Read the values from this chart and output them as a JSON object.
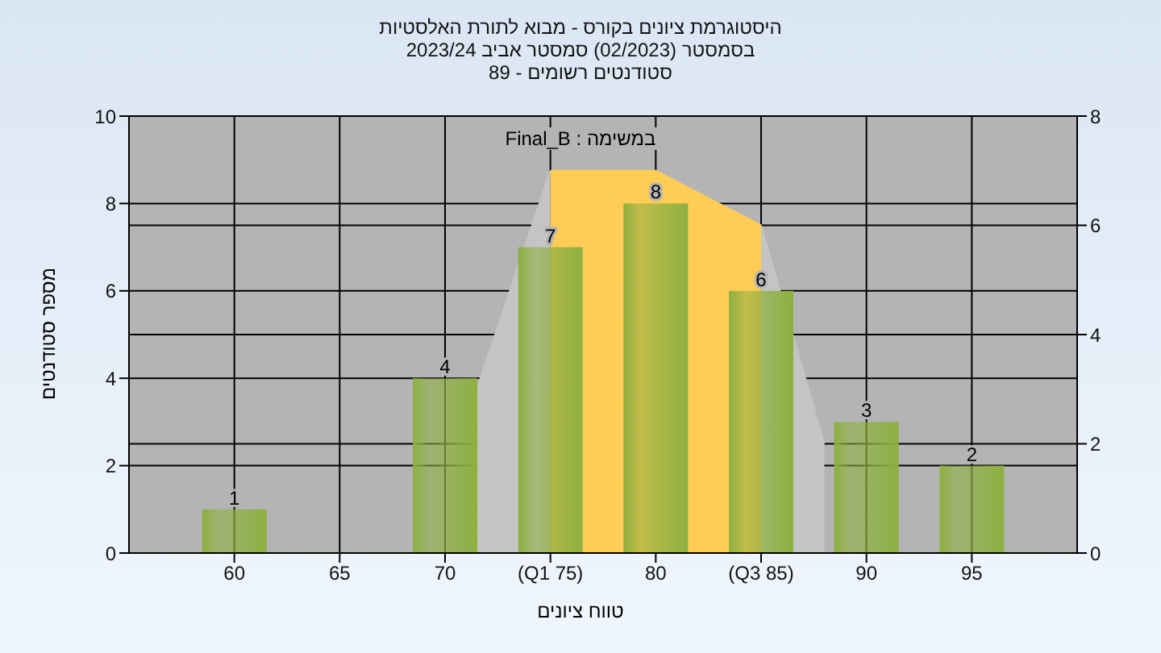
{
  "chart_data": {
    "type": "bar",
    "title": "היסטוגרמת ציונים בקורס - מבוא לתורת האלסטיות",
    "subtitle": "בסמסטר  (02/2023)  סמסטר אביב 2023/24\nסטודנטים רשומים - 89",
    "xlabel": "טווח ציונים",
    "ylabel": "מספר סטודנטים",
    "annotations": [
      "במשימה : Final_B"
    ],
    "x": [
      60,
      65,
      70,
      75,
      80,
      85,
      90,
      95
    ],
    "series": [
      {
        "type": "area",
        "axis": "y2",
        "color": "#c4c4c4",
        "x": [
          71.5,
          75
        ],
        "values": [
          3,
          7
        ]
      },
      {
        "type": "area",
        "axis": "y2",
        "color": "#c4c4c4",
        "x": [
          85,
          88
        ],
        "values": [
          6,
          2
        ]
      },
      {
        "type": "area",
        "axis": "y2",
        "color": "#ffcc55",
        "x": [
          75,
          80,
          85
        ],
        "values": [
          7,
          7,
          6
        ]
      },
      {
        "color": "#8db040",
        "values": [
          1,
          null,
          4,
          7,
          8,
          6,
          3,
          2
        ],
        "value_labels": [
          "1",
          null,
          "4",
          "7",
          "8",
          "6",
          "3",
          "2"
        ]
      }
    ],
    "xlim": [
      55,
      100
    ],
    "xticks": [
      60,
      65,
      70,
      {
        "value": 75,
        "label": "(Q1 75)"
      },
      80,
      {
        "value": 85,
        "label": "(Q3 85)"
      },
      90,
      95
    ],
    "ylim": [
      0,
      10
    ],
    "yticks": [
      0,
      2,
      4,
      6,
      8,
      10
    ],
    "y2lim": [
      0,
      8
    ],
    "y2ticks": [
      0,
      2,
      4,
      6,
      8
    ],
    "grid": true
  }
}
